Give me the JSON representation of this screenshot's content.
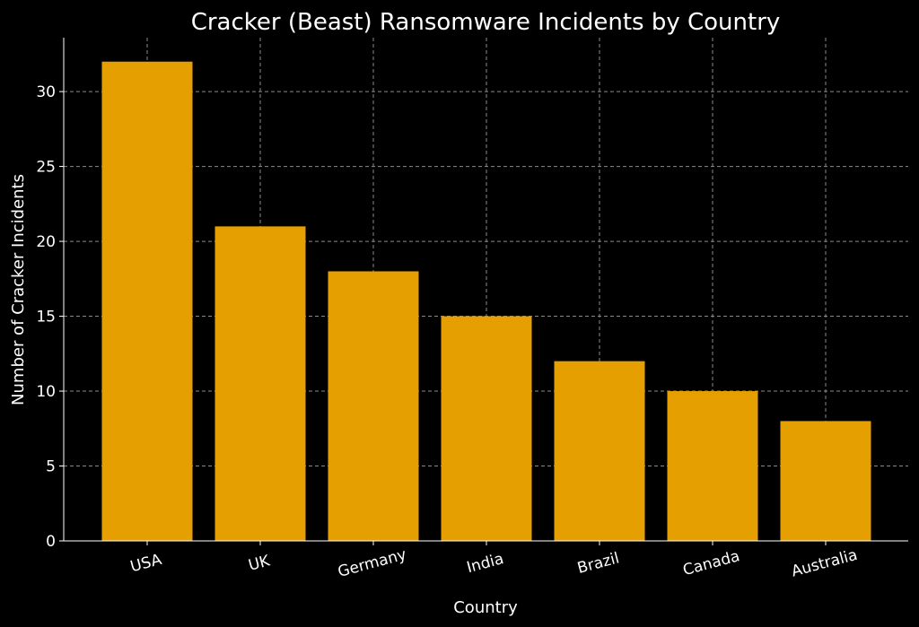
{
  "chart_data": {
    "type": "bar",
    "title": "Cracker (Beast) Ransomware Incidents by Country",
    "xlabel": "Country",
    "ylabel": "Number of Cracker Incidents",
    "categories": [
      "USA",
      "UK",
      "Germany",
      "India",
      "Brazil",
      "Canada",
      "Australia"
    ],
    "values": [
      32,
      21,
      18,
      15,
      12,
      10,
      8
    ],
    "ylim": [
      0,
      33.6
    ],
    "yticks": [
      0,
      5,
      10,
      15,
      20,
      25,
      30
    ],
    "grid": true,
    "bar_color": "#E69F00",
    "background": "#000000",
    "xtick_rotation": -15
  }
}
